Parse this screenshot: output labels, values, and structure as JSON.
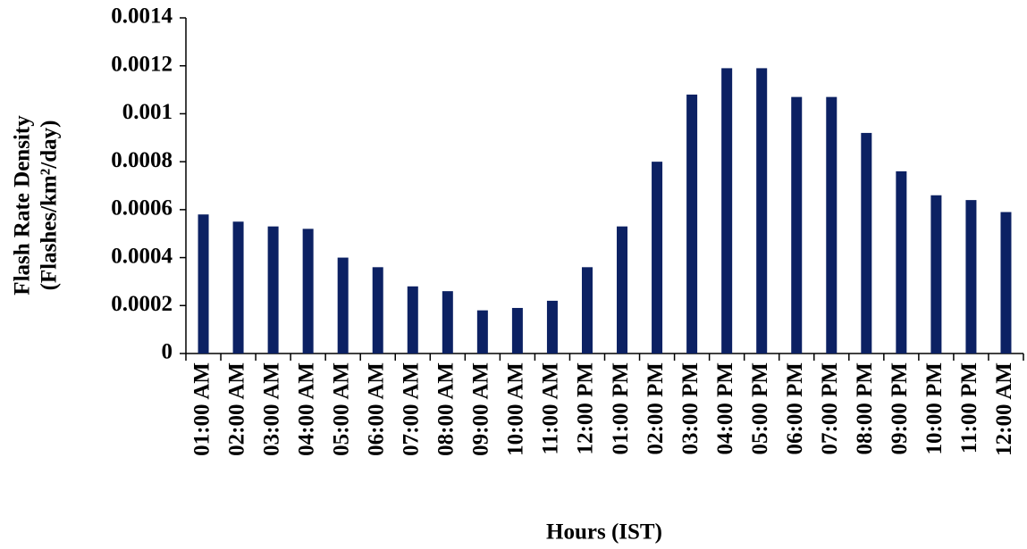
{
  "chart_data": {
    "type": "bar",
    "x_label": "Hours (IST)",
    "y_label": [
      "Flash Rate Density",
      "(Flashes/km²/day)"
    ],
    "categories": [
      "01:00 AM",
      "02:00 AM",
      "03:00 AM",
      "04:00 AM",
      "05:00 AM",
      "06:00 AM",
      "07:00 AM",
      "08:00 AM",
      "09:00 AM",
      "10:00 AM",
      "11:00 AM",
      "12:00 PM",
      "01:00 PM",
      "02:00 PM",
      "03:00 PM",
      "04:00 PM",
      "05:00 PM",
      "06:00 PM",
      "07:00 PM",
      "08:00 PM",
      "09:00 PM",
      "10:00 PM",
      "11:00 PM",
      "12:00 AM"
    ],
    "values": [
      0.00058,
      0.00055,
      0.00053,
      0.00052,
      0.0004,
      0.00036,
      0.00028,
      0.00026,
      0.00018,
      0.00019,
      0.00022,
      0.00036,
      0.00053,
      0.0008,
      0.00108,
      0.00119,
      0.00119,
      0.00107,
      0.00107,
      0.00092,
      0.00076,
      0.00066,
      0.00064,
      0.00059
    ],
    "color": "#0c2163",
    "ylim": [
      0,
      0.0014
    ],
    "yticks": [
      0,
      0.0002,
      0.0004,
      0.0006,
      0.0008,
      0.001,
      0.0012,
      0.0014
    ],
    "grid": false
  }
}
